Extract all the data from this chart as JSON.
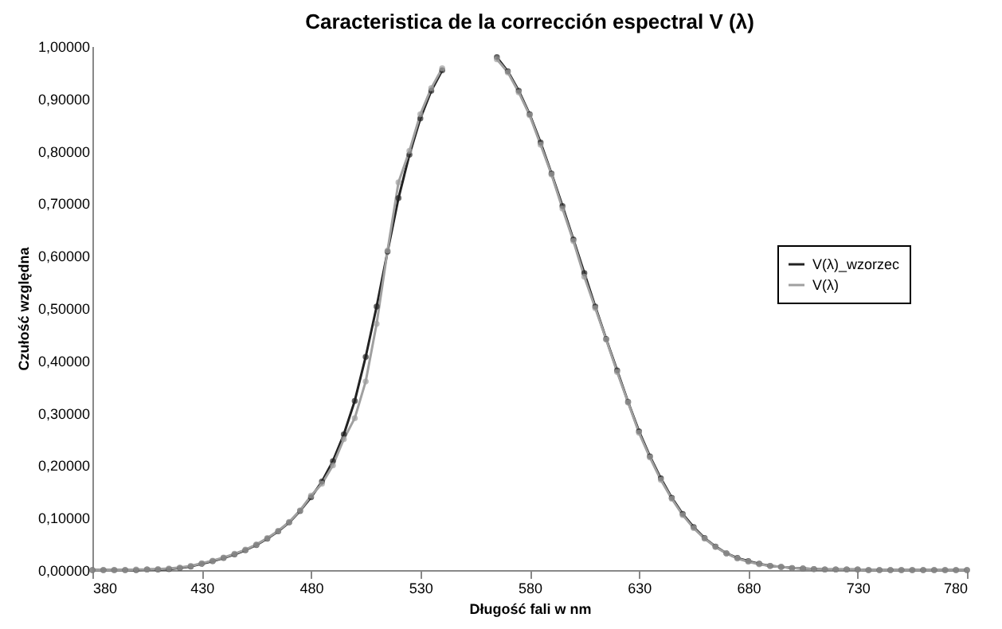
{
  "chart_data": {
    "type": "line",
    "title": "Caracteristica de la corrección espectral V (λ)",
    "xlabel": "Długość fali w nm",
    "ylabel": "Czułość względna",
    "x": [
      380,
      385,
      390,
      395,
      400,
      405,
      410,
      415,
      420,
      425,
      430,
      435,
      440,
      445,
      450,
      455,
      460,
      465,
      470,
      475,
      480,
      485,
      490,
      495,
      500,
      505,
      510,
      515,
      520,
      525,
      530,
      535,
      540,
      545,
      550,
      555,
      560,
      565,
      570,
      575,
      580,
      585,
      590,
      595,
      600,
      605,
      610,
      615,
      620,
      625,
      630,
      635,
      640,
      645,
      650,
      655,
      660,
      665,
      670,
      675,
      680,
      685,
      690,
      695,
      700,
      705,
      710,
      715,
      720,
      725,
      730,
      735,
      740,
      745,
      750,
      755,
      760,
      765,
      770,
      775,
      780
    ],
    "series": [
      {
        "name": "V(λ)_wzorzec",
        "color": "#222222",
        "values": [
          0.0,
          0.0,
          0.0,
          0.0,
          0.0,
          0.001,
          0.001,
          0.002,
          0.004,
          0.007,
          0.012,
          0.017,
          0.023,
          0.03,
          0.038,
          0.048,
          0.06,
          0.074,
          0.091,
          0.113,
          0.139,
          0.169,
          0.208,
          0.259,
          0.323,
          0.407,
          0.503,
          0.608,
          0.71,
          0.793,
          0.862,
          0.915,
          0.954,
          null,
          null,
          null,
          null,
          0.979,
          0.952,
          0.915,
          0.87,
          0.816,
          0.757,
          0.695,
          0.631,
          0.567,
          0.503,
          0.441,
          0.381,
          0.321,
          0.265,
          0.217,
          0.175,
          0.138,
          0.107,
          0.082,
          0.061,
          0.045,
          0.032,
          0.023,
          0.017,
          0.012,
          0.008,
          0.006,
          0.004,
          0.003,
          0.002,
          0.001,
          0.001,
          0.001,
          0.001,
          0.0,
          0.0,
          0.0,
          0.0,
          0.0,
          0.0,
          0.0,
          0.0,
          0.0,
          0.0
        ]
      },
      {
        "name": "V(λ)",
        "color": "#a0a0a0",
        "values": [
          0.0,
          0.0,
          0.0,
          0.0,
          0.001,
          0.001,
          0.002,
          0.003,
          0.005,
          0.008,
          0.013,
          0.018,
          0.024,
          0.031,
          0.039,
          0.049,
          0.061,
          0.075,
          0.092,
          0.114,
          0.142,
          0.165,
          0.2,
          0.25,
          0.29,
          0.36,
          0.47,
          0.61,
          0.74,
          0.8,
          0.87,
          0.92,
          0.958,
          null,
          null,
          null,
          null,
          0.975,
          0.95,
          0.912,
          0.868,
          0.812,
          0.755,
          0.69,
          0.628,
          0.56,
          0.5,
          0.44,
          0.378,
          0.32,
          0.262,
          0.215,
          0.172,
          0.136,
          0.105,
          0.08,
          0.06,
          0.044,
          0.032,
          0.022,
          0.016,
          0.011,
          0.008,
          0.006,
          0.004,
          0.003,
          0.002,
          0.001,
          0.001,
          0.001,
          0.001,
          0.0,
          0.0,
          0.0,
          0.0,
          0.0,
          0.0,
          0.0,
          0.0,
          0.0,
          0.0
        ]
      }
    ],
    "xlim": [
      380,
      780
    ],
    "xticks": [
      380,
      430,
      480,
      530,
      580,
      630,
      680,
      730,
      780
    ],
    "ylim": [
      0,
      1
    ],
    "yticks": [
      {
        "value": 0,
        "label": "0,00000"
      },
      {
        "value": 0.1,
        "label": "0,10000"
      },
      {
        "value": 0.2,
        "label": "0,20000"
      },
      {
        "value": 0.3,
        "label": "0,30000"
      },
      {
        "value": 0.4,
        "label": "0,40000"
      },
      {
        "value": 0.5,
        "label": "0,50000"
      },
      {
        "value": 0.6,
        "label": "0,60000"
      },
      {
        "value": 0.7,
        "label": "0,70000"
      },
      {
        "value": 0.8,
        "label": "0,80000"
      },
      {
        "value": 0.9,
        "label": "0,90000"
      },
      {
        "value": 1,
        "label": "1,00000"
      }
    ],
    "grid": false,
    "legend": "right",
    "marker": "circle",
    "line_style": "solid"
  }
}
